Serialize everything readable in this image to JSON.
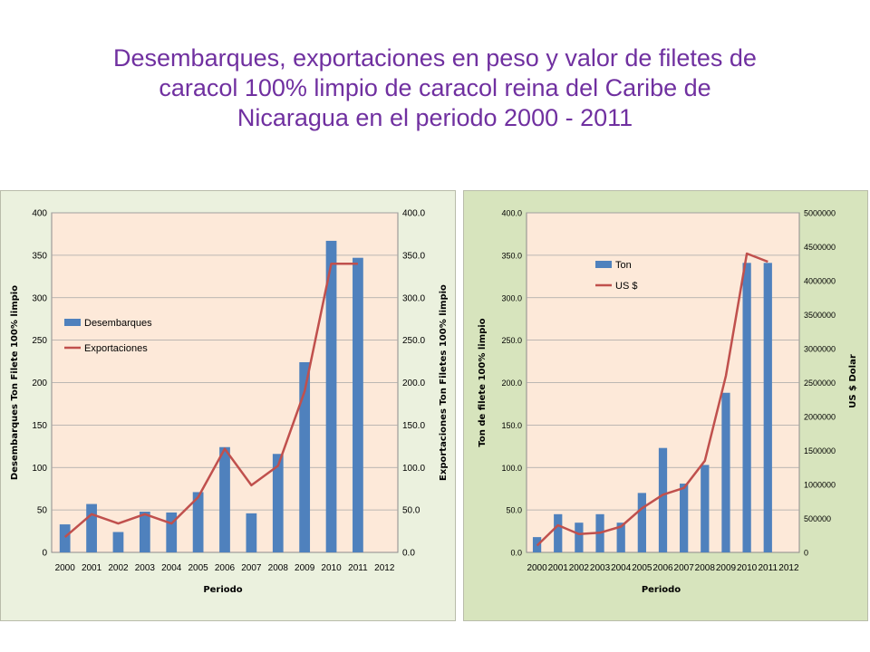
{
  "title": {
    "line1": "Desembarques, exportaciones en peso y valor de filetes de",
    "line2": "caracol 100% limpio de caracol reina del Caribe de",
    "line3": "Nicaragua en el periodo 2000 - 2011"
  },
  "colors": {
    "title": "#7030a0",
    "bar": "#4f81bd",
    "line": "#c0504d",
    "plot_bg": "#fde9d9",
    "panel_left_bg": "#ebf1de",
    "panel_right_bg": "#d7e4bd"
  },
  "chart_data": [
    {
      "type": "bar+line",
      "categories": [
        "2000",
        "2001",
        "2002",
        "2003",
        "2004",
        "2005",
        "2006",
        "2007",
        "2008",
        "2009",
        "2010",
        "2011",
        "2012"
      ],
      "series": [
        {
          "name": "Desembarques",
          "kind": "bar",
          "axis": "left",
          "values": [
            33,
            57,
            24,
            48,
            47,
            71,
            124,
            46,
            116,
            224,
            367,
            347,
            null
          ]
        },
        {
          "name": "Exportaciones",
          "kind": "line",
          "axis": "right",
          "values": [
            18,
            45,
            34,
            45,
            34,
            65,
            122,
            79,
            102,
            190,
            340,
            340,
            null
          ]
        }
      ],
      "xlabel": "Periodo",
      "ylabel_left": "Desembarques Ton Filete 100% limpio",
      "ylabel_right": "Exportaciones Ton Filetes 100% limpio",
      "ylim_left": [
        0,
        400
      ],
      "ylim_right": [
        0,
        400
      ],
      "yticks_left": [
        "0",
        "50",
        "100",
        "150",
        "200",
        "250",
        "300",
        "350",
        "400"
      ],
      "yticks_right": [
        "0.0",
        "50.0",
        "100.0",
        "150.0",
        "200.0",
        "250.0",
        "300.0",
        "350.0",
        "400.0"
      ],
      "grid": true,
      "legend": "upper-left"
    },
    {
      "type": "bar+line",
      "categories": [
        "2000",
        "2001",
        "2002",
        "2003",
        "2004",
        "2005",
        "2006",
        "2007",
        "2008",
        "2009",
        "2010",
        "2011",
        "2012"
      ],
      "series": [
        {
          "name": "Ton",
          "kind": "bar",
          "axis": "left",
          "values": [
            18,
            45,
            35,
            45,
            35,
            70,
            123,
            81,
            103,
            188,
            341,
            341,
            null
          ]
        },
        {
          "name": "US $",
          "kind": "line",
          "axis": "right",
          "values": [
            100000,
            400000,
            270000,
            290000,
            380000,
            650000,
            850000,
            950000,
            1350000,
            2600000,
            4400000,
            4280000,
            null
          ]
        }
      ],
      "xlabel": "Periodo",
      "ylabel_left": "Ton de filete 100% limpio",
      "ylabel_right": "US $ Dolar",
      "ylim_left": [
        0,
        400
      ],
      "ylim_right": [
        0,
        5000000
      ],
      "yticks_left": [
        "0.0",
        "50.0",
        "100.0",
        "150.0",
        "200.0",
        "250.0",
        "300.0",
        "350.0",
        "400.0"
      ],
      "yticks_right": [
        "0",
        "500000",
        "1000000",
        "1500000",
        "2000000",
        "2500000",
        "3000000",
        "3500000",
        "4000000",
        "4500000",
        "5000000"
      ],
      "grid": true,
      "legend": "upper-left"
    }
  ]
}
